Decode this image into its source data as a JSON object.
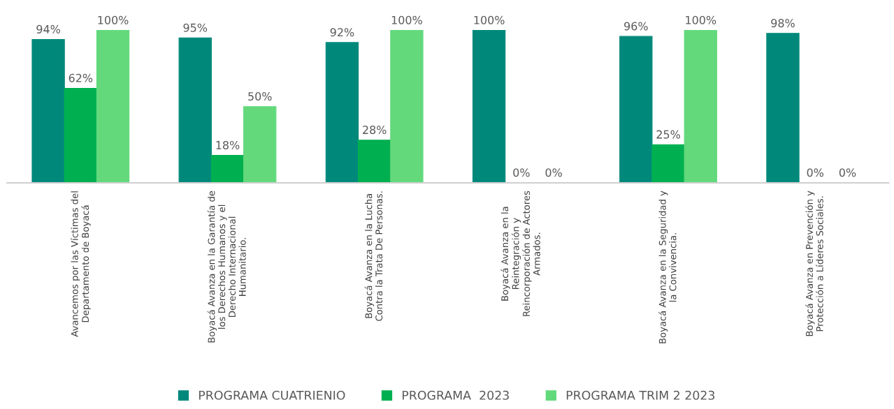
{
  "chart_data": {
    "type": "bar",
    "categories": [
      "Avancemos por las Víctimas del\nDepartamento de Boyacá",
      "Boyacá Avanza en la Garantía de\nlos Derechos Humanos y el\nDerecho Internacional\nHumanitario.",
      "Boyacá Avanza en la Lucha\nContra la Trata De Personas.",
      "Boyacá Avanza en la\nReintegración y\nReincorporación de Actores\nArmados.",
      "Boyacá Avanza en la Seguridad y\nla Convivencia.",
      "Boyacá Avanza en Prevención y\nProtección a Líderes Sociales."
    ],
    "series": [
      {
        "name": "PROGRAMA CUATRIENIO",
        "color": "#00897b",
        "values": [
          94,
          95,
          92,
          100,
          96,
          98
        ],
        "value_labels": [
          "94%",
          "95%",
          "92%",
          "100%",
          "96%",
          "98%"
        ]
      },
      {
        "name": "PROGRAMA  2023",
        "color": "#00b050",
        "values": [
          62,
          18,
          28,
          0,
          25,
          0
        ],
        "value_labels": [
          "62%",
          "18%",
          "28%",
          "0%",
          "25%",
          "0%"
        ]
      },
      {
        "name": "PROGRAMA TRIM 2 2023",
        "color": "#63d97c",
        "values": [
          100,
          50,
          100,
          0,
          100,
          0
        ],
        "value_labels": [
          "100%",
          "50%",
          "100%",
          "0%",
          "100%",
          "0%"
        ]
      }
    ],
    "tick_labels": "x",
    "legend": "bottom",
    "grid": false
  }
}
